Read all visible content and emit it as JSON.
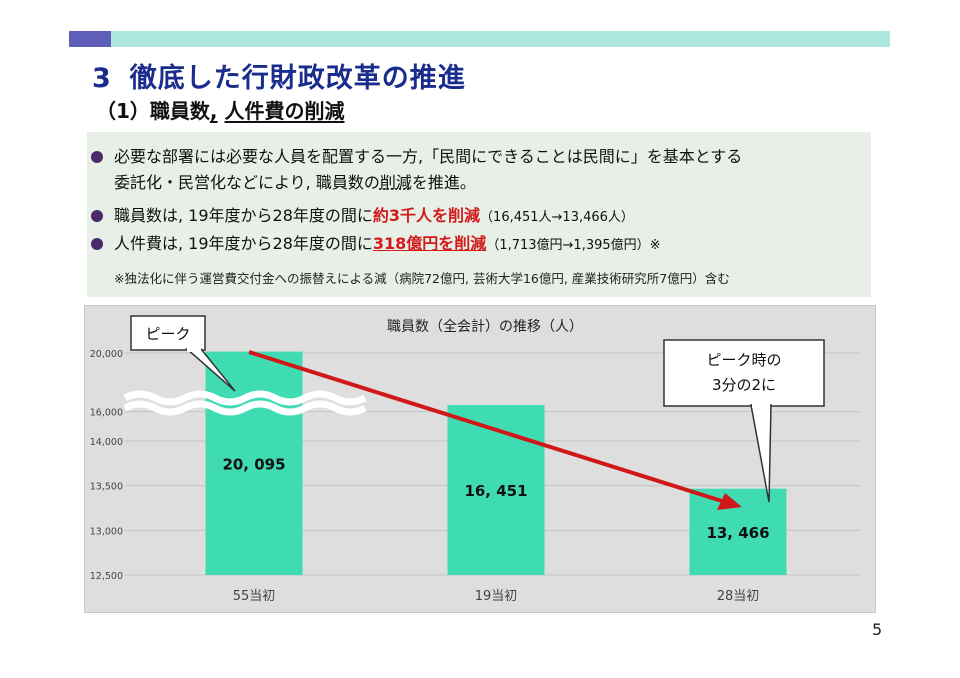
{
  "header": {
    "section_number": "3",
    "title": "徹底した行財政改革の推進",
    "subtitle_prefix": "（1）職員数",
    "subtitle_sep": ",",
    "subtitle_rest": "人件費の削減"
  },
  "bullets": [
    {
      "line1": "必要な部署には必要な人員を配置する一方,「民間にできることは民間に」を基本とする",
      "line2a": "委託化・民営化などにより, 職員数の",
      "line2b": "削減",
      "line2c": "を推進。"
    },
    {
      "before": "職員数は, 19年度から28年度の間に",
      "highlight": "約3千人を削減",
      "after": "（16,451人→13,466人）"
    },
    {
      "before": "人件費は, 19年度から28年度の間に",
      "highlight": "318億円を削減",
      "after": "（1,713億円→1,395億円）※"
    }
  ],
  "note": "※独法化に伴う運営費交付金への振替えによる減（病院72億円, 芸術大学16億円, 産業技術研究所7億円）含む",
  "chart_data": {
    "type": "bar",
    "title": "職員数（全会計）の推移（人）",
    "categories": [
      "55当初",
      "19当初",
      "28当初"
    ],
    "values": [
      20095,
      16451,
      13466
    ],
    "value_labels": [
      "20, 095",
      "16, 451",
      "13, 466"
    ],
    "y_tick_labels": [
      "20,000",
      "16,000",
      "14,000",
      "13,500",
      "13,000",
      "12,500"
    ],
    "y_ticks": [
      20000,
      16000,
      14000,
      13500,
      13000,
      12500
    ],
    "ylim": [
      12500,
      20000
    ],
    "axis_break": true,
    "bar_color": "#3fdcb4",
    "arrow_color": "#d01818",
    "grid": true
  },
  "callouts": {
    "peak": "ピーク",
    "reduction_line1": "ピーク時の",
    "reduction_line2": "3分の2に"
  },
  "page_number": "5"
}
